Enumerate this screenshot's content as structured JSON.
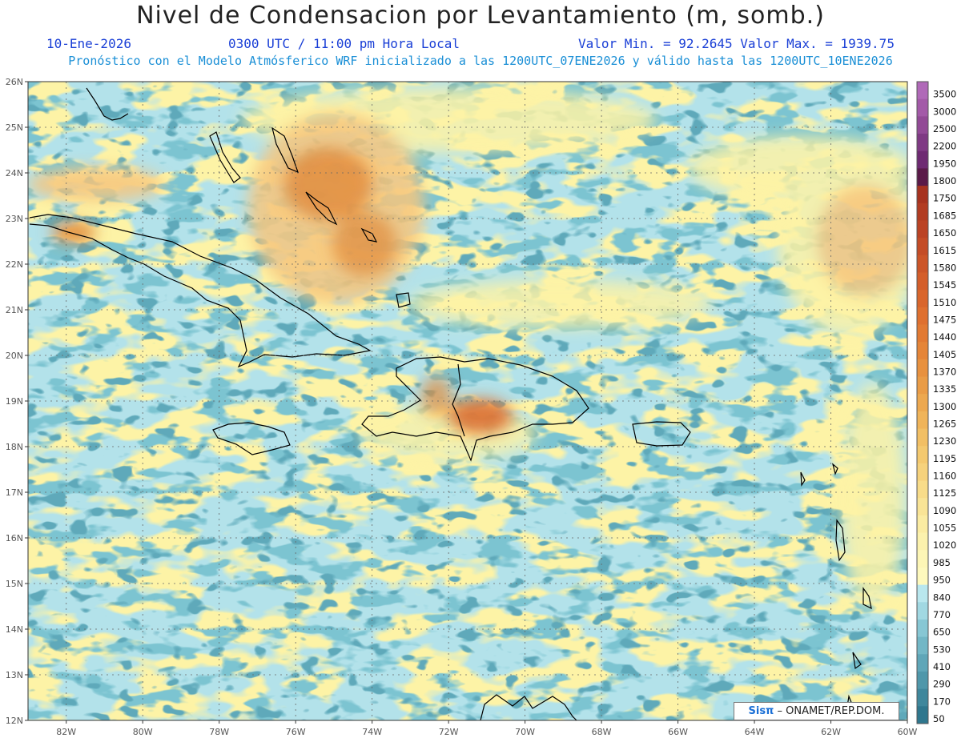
{
  "header": {
    "title": "Nivel de Condensacion por Levantamiento (m, somb.)",
    "date": "10-Ene-2026",
    "time": "0300 UTC / 11:00 pm Hora Local",
    "minmax": "Valor Min. = 92.2645   Valor Max. = 1939.75",
    "subtitle": "Pronóstico con el Modelo Atmósferico WRF inicializado a las 1200UTC_07ENE2026 y válido hasta las  1200UTC_10ENE2026"
  },
  "map": {
    "lon_range": [
      -83,
      -60
    ],
    "lat_range": [
      12,
      26
    ],
    "lon_ticks": [
      "82W",
      "80W",
      "78W",
      "76W",
      "74W",
      "72W",
      "70W",
      "68W",
      "66W",
      "64W",
      "62W",
      "60W"
    ],
    "lat_ticks": [
      "12N",
      "13N",
      "14N",
      "15N",
      "16N",
      "17N",
      "18N",
      "19N",
      "20N",
      "21N",
      "22N",
      "23N",
      "24N",
      "25N",
      "26N"
    ],
    "colors": {
      "sea_base": "#b3e2ea",
      "low": "#7cc4d1",
      "lower": "#5ea9ba",
      "mid": "#fdf3a6",
      "warm": "#f6c67e",
      "hot": "#e08a3c",
      "coast": "#000000"
    }
  },
  "colorbar": {
    "labels": [
      "3500",
      "3000",
      "2500",
      "2200",
      "1950",
      "1800",
      "1750",
      "1685",
      "1650",
      "1615",
      "1580",
      "1545",
      "1510",
      "1475",
      "1440",
      "1405",
      "1370",
      "1335",
      "1300",
      "1265",
      "1230",
      "1195",
      "1160",
      "1125",
      "1090",
      "1055",
      "1020",
      "985",
      "950",
      "840",
      "770",
      "650",
      "530",
      "410",
      "290",
      "170",
      "50"
    ],
    "colors": [
      "#b069b8",
      "#a35aa8",
      "#924a96",
      "#7f3a84",
      "#6e2a72",
      "#5a1a48",
      "#a7331f",
      "#b23c22",
      "#bb4324",
      "#c44c26",
      "#cc5528",
      "#d45e2a",
      "#d9662c",
      "#df702f",
      "#e27a33",
      "#e58538",
      "#e8913f",
      "#ea9c46",
      "#eda84f",
      "#f0b459",
      "#f2bf64",
      "#f4c96f",
      "#f6d27c",
      "#f8dc89",
      "#f9e496",
      "#fbeca2",
      "#fcf2ad",
      "#fdf6b6",
      "#fef9bd",
      "#b9e7ee",
      "#a1d8e2",
      "#87c7d4",
      "#72b7c6",
      "#5fa6b8",
      "#4f97aa",
      "#3f879c",
      "#2f778e"
    ]
  },
  "credit": {
    "logo": "Sisπ",
    "text": " – ONAMET/REP.DOM."
  }
}
